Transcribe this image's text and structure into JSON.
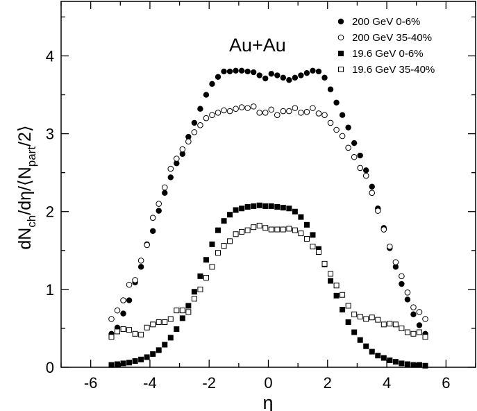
{
  "chart_data": {
    "type": "scatter",
    "xlabel": "η",
    "ylabel": {
      "pre": "dN",
      "sub1": "ch",
      "mid": "/dη/⟨N",
      "sub2": "part",
      "post": "/2⟩"
    },
    "annotation": "Au+Au",
    "xlim": [
      -7,
      7
    ],
    "ylim": [
      0,
      4.7
    ],
    "x_ticks": [
      -6,
      -4,
      -2,
      0,
      2,
      4,
      6
    ],
    "y_ticks": [
      0,
      1,
      2,
      3,
      4
    ],
    "x_tick_labels": [
      "-6",
      "-4",
      "-2",
      "0",
      "2",
      "4",
      "6"
    ],
    "y_tick_labels": [
      "0",
      "1",
      "2",
      "3",
      "4"
    ],
    "grid": false,
    "legend_position": "top-right",
    "series": [
      {
        "name": "200 GeV 0-6%",
        "marker": "circle-filled",
        "x": [
          -5.3,
          -5.1,
          -4.9,
          -4.7,
          -4.5,
          -4.3,
          -4.1,
          -3.9,
          -3.7,
          -3.5,
          -3.3,
          -3.1,
          -2.9,
          -2.7,
          -2.5,
          -2.3,
          -2.1,
          -1.9,
          -1.7,
          -1.5,
          -1.3,
          -1.1,
          -0.9,
          -0.7,
          -0.5,
          -0.3,
          -0.1,
          0.1,
          0.3,
          0.5,
          0.7,
          0.9,
          1.1,
          1.3,
          1.5,
          1.7,
          1.9,
          2.1,
          2.3,
          2.5,
          2.7,
          2.9,
          3.1,
          3.3,
          3.5,
          3.7,
          3.9,
          4.1,
          4.3,
          4.5,
          4.7,
          4.9,
          5.1,
          5.3
        ],
        "y": [
          0.43,
          0.51,
          0.69,
          0.86,
          1.09,
          1.29,
          1.58,
          1.75,
          2.01,
          2.24,
          2.44,
          2.62,
          2.74,
          2.96,
          3.14,
          3.32,
          3.5,
          3.64,
          3.73,
          3.8,
          3.8,
          3.81,
          3.81,
          3.8,
          3.79,
          3.75,
          3.71,
          3.77,
          3.75,
          3.72,
          3.69,
          3.72,
          3.75,
          3.78,
          3.81,
          3.8,
          3.72,
          3.57,
          3.4,
          3.24,
          3.08,
          2.88,
          2.72,
          2.53,
          2.32,
          2.04,
          1.79,
          1.53,
          1.29,
          1.07,
          0.87,
          0.68,
          0.54,
          0.43
        ]
      },
      {
        "name": "200 GeV 35-40%",
        "marker": "circle-open",
        "x": [
          -5.3,
          -5.1,
          -4.9,
          -4.7,
          -4.5,
          -4.3,
          -4.1,
          -3.9,
          -3.7,
          -3.5,
          -3.3,
          -3.1,
          -2.9,
          -2.7,
          -2.5,
          -2.3,
          -2.1,
          -1.9,
          -1.7,
          -1.5,
          -1.3,
          -1.1,
          -0.9,
          -0.7,
          -0.5,
          -0.3,
          -0.1,
          0.1,
          0.3,
          0.5,
          0.7,
          0.9,
          1.1,
          1.3,
          1.5,
          1.7,
          1.9,
          2.1,
          2.3,
          2.5,
          2.7,
          2.9,
          3.1,
          3.3,
          3.5,
          3.7,
          3.9,
          4.1,
          4.3,
          4.5,
          4.7,
          4.9,
          5.1,
          5.3
        ],
        "y": [
          0.62,
          0.73,
          0.86,
          1.06,
          1.12,
          1.37,
          1.57,
          1.92,
          2.1,
          2.31,
          2.55,
          2.68,
          2.8,
          2.9,
          3.02,
          3.11,
          3.2,
          3.24,
          3.27,
          3.3,
          3.29,
          3.32,
          3.34,
          3.33,
          3.35,
          3.27,
          3.27,
          3.31,
          3.24,
          3.29,
          3.29,
          3.33,
          3.27,
          3.28,
          3.33,
          3.26,
          3.24,
          3.14,
          3.05,
          2.97,
          2.82,
          2.7,
          2.56,
          2.46,
          2.24,
          2.01,
          1.77,
          1.55,
          1.35,
          1.17,
          0.96,
          0.77,
          0.71,
          0.62
        ]
      },
      {
        "name": "19.6 GeV 0-6%",
        "marker": "square-filled",
        "x": [
          -5.3,
          -5.1,
          -4.9,
          -4.7,
          -4.5,
          -4.3,
          -4.1,
          -3.9,
          -3.7,
          -3.5,
          -3.3,
          -3.1,
          -2.9,
          -2.7,
          -2.5,
          -2.3,
          -2.1,
          -1.9,
          -1.7,
          -1.5,
          -1.3,
          -1.1,
          -0.9,
          -0.7,
          -0.5,
          -0.3,
          -0.1,
          0.1,
          0.3,
          0.5,
          0.7,
          0.9,
          1.1,
          1.3,
          1.5,
          1.7,
          1.9,
          2.1,
          2.3,
          2.5,
          2.7,
          2.9,
          3.1,
          3.3,
          3.5,
          3.7,
          3.9,
          4.1,
          4.3,
          4.5,
          4.7,
          4.9,
          5.1,
          5.3
        ],
        "y": [
          0.03,
          0.04,
          0.05,
          0.06,
          0.08,
          0.1,
          0.13,
          0.17,
          0.22,
          0.29,
          0.38,
          0.49,
          0.63,
          0.79,
          0.97,
          1.17,
          1.38,
          1.58,
          1.76,
          1.88,
          1.96,
          2.02,
          2.04,
          2.06,
          2.07,
          2.08,
          2.07,
          2.07,
          2.06,
          2.05,
          2.04,
          2.0,
          1.93,
          1.83,
          1.7,
          1.52,
          1.32,
          1.11,
          0.92,
          0.74,
          0.58,
          0.45,
          0.35,
          0.27,
          0.2,
          0.15,
          0.12,
          0.09,
          0.07,
          0.05,
          0.04,
          0.03,
          0.03,
          0.02
        ]
      },
      {
        "name": "19.6 GeV 35-40%",
        "marker": "square-open",
        "x": [
          -5.3,
          -5.1,
          -4.9,
          -4.7,
          -4.5,
          -4.3,
          -4.1,
          -3.9,
          -3.7,
          -3.5,
          -3.3,
          -3.1,
          -2.9,
          -2.7,
          -2.5,
          -2.3,
          -2.1,
          -1.9,
          -1.7,
          -1.5,
          -1.3,
          -1.1,
          -0.9,
          -0.7,
          -0.5,
          -0.3,
          -0.1,
          0.1,
          0.3,
          0.5,
          0.7,
          0.9,
          1.1,
          1.3,
          1.5,
          1.7,
          1.9,
          2.1,
          2.3,
          2.5,
          2.7,
          2.9,
          3.1,
          3.3,
          3.5,
          3.7,
          3.9,
          4.1,
          4.3,
          4.5,
          4.7,
          4.9,
          5.1,
          5.3
        ],
        "y": [
          0.39,
          0.46,
          0.49,
          0.48,
          0.43,
          0.42,
          0.51,
          0.55,
          0.58,
          0.58,
          0.62,
          0.73,
          0.73,
          0.71,
          0.88,
          1.0,
          1.15,
          1.29,
          1.47,
          1.56,
          1.62,
          1.71,
          1.74,
          1.76,
          1.8,
          1.82,
          1.79,
          1.77,
          1.77,
          1.77,
          1.78,
          1.76,
          1.72,
          1.65,
          1.55,
          1.48,
          1.33,
          1.2,
          1.05,
          0.93,
          0.79,
          0.68,
          0.65,
          0.62,
          0.64,
          0.61,
          0.55,
          0.56,
          0.55,
          0.5,
          0.45,
          0.43,
          0.45,
          0.39
        ]
      }
    ]
  }
}
